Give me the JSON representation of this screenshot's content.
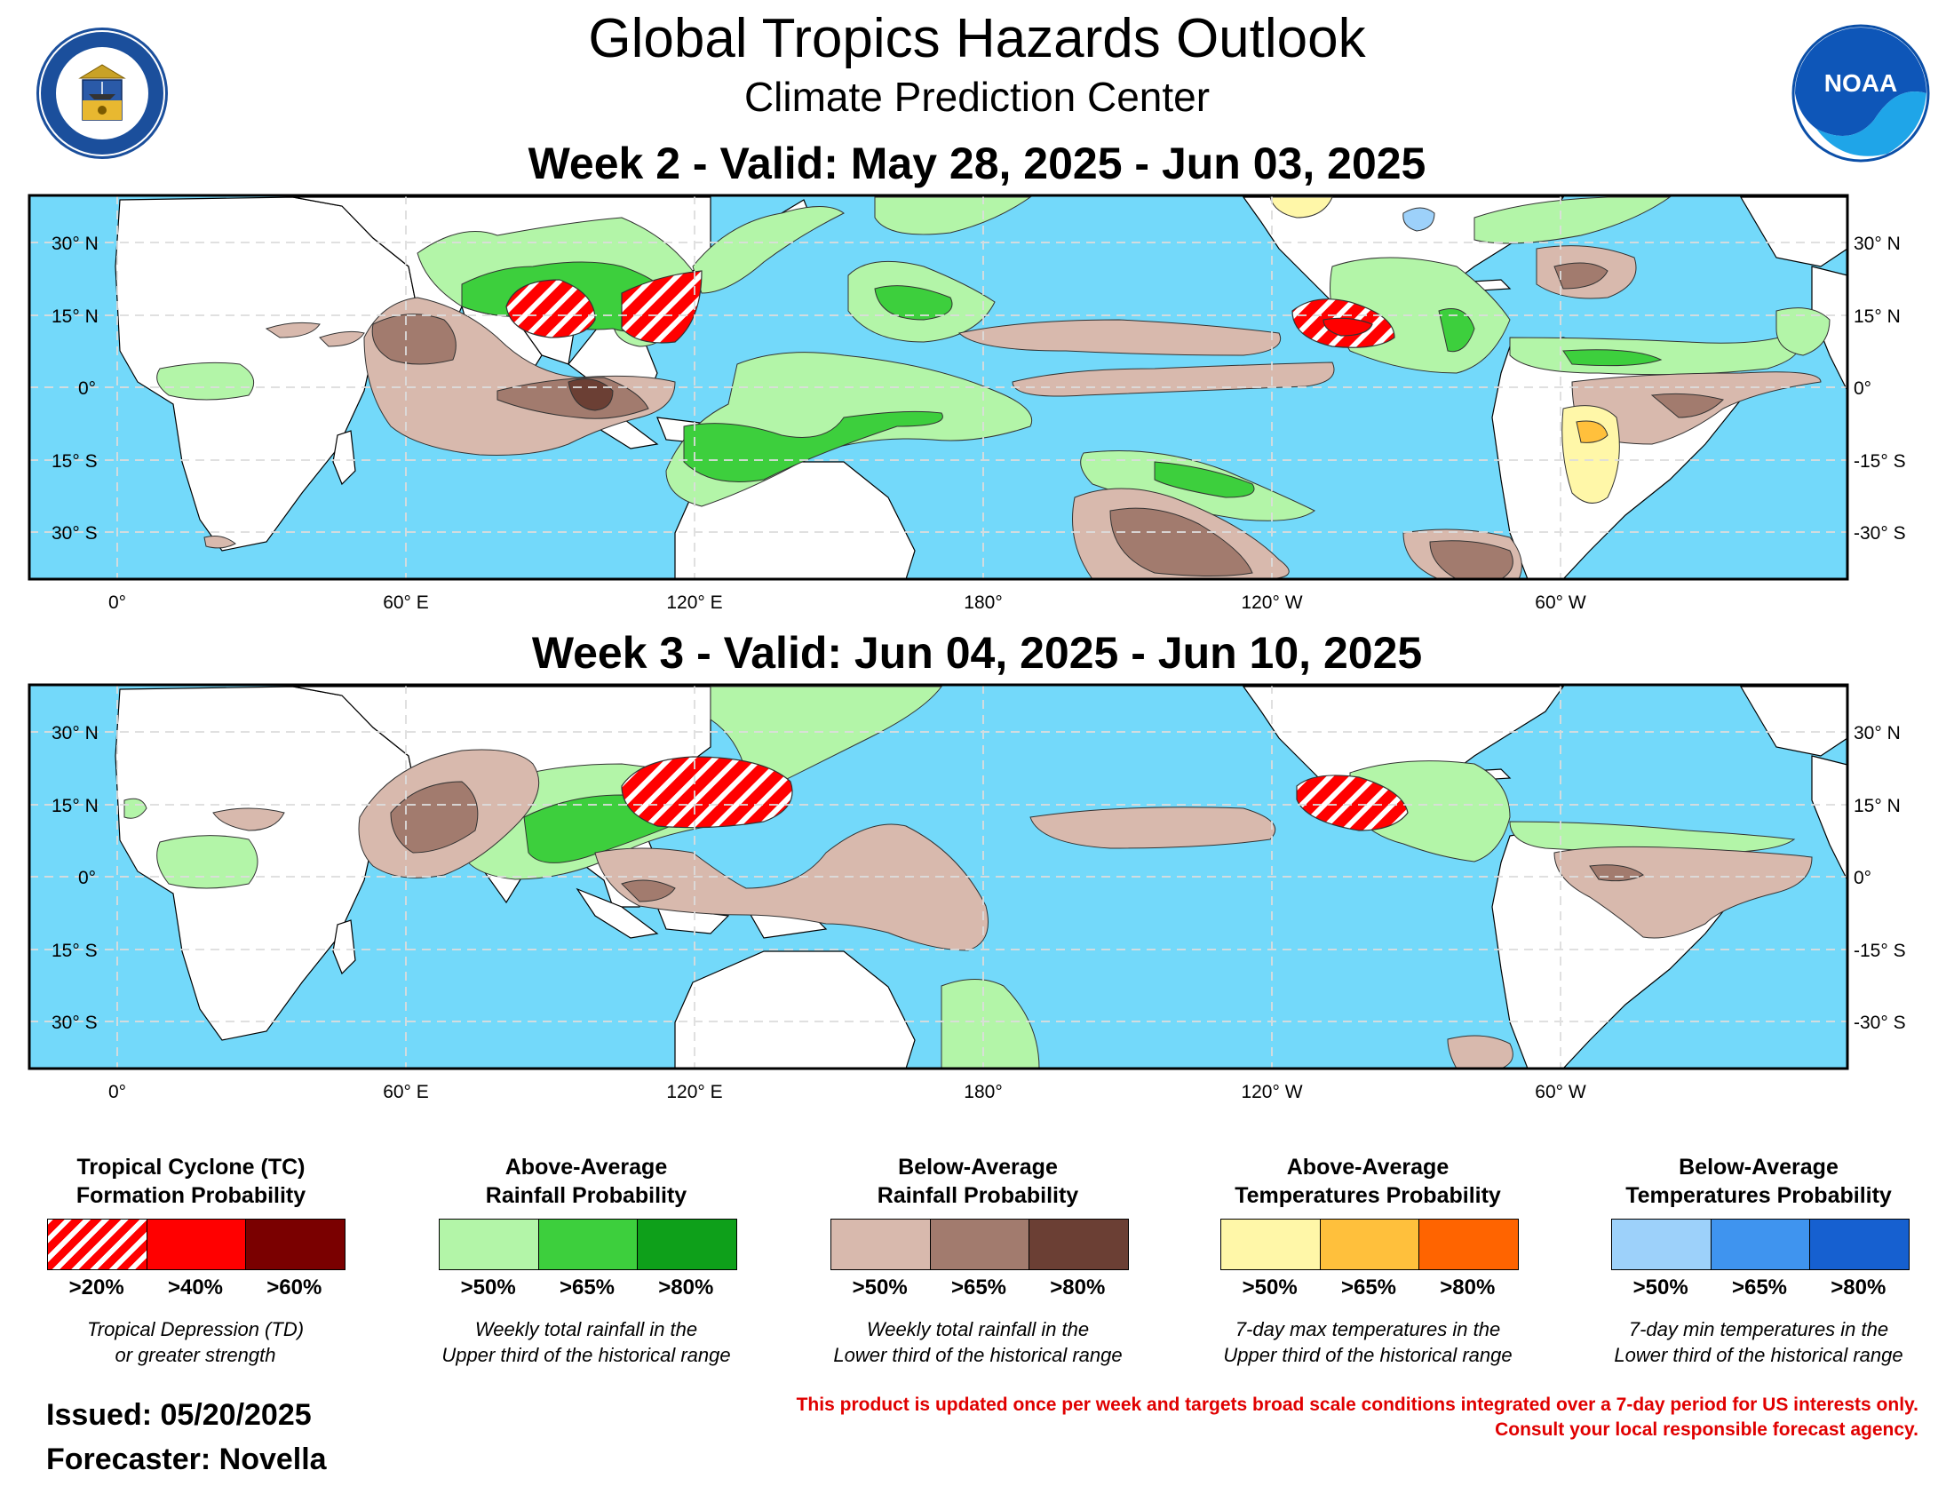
{
  "header": {
    "title": "Global Tropics Hazards Outlook",
    "subtitle": "Climate Prediction Center",
    "logo_left_name": "department-of-commerce-seal",
    "logo_right_name": "noaa-logo",
    "logo_right_text": "NOAA"
  },
  "maps": [
    {
      "title": "Week 2 - Valid: May 28, 2025 - Jun 03, 2025"
    },
    {
      "title": "Week 3 - Valid: Jun 04, 2025 - Jun 10, 2025"
    }
  ],
  "axes": {
    "lat_left": [
      "30° N",
      "15° N",
      "0°",
      "15° S",
      "30° S"
    ],
    "lat_right": [
      "30° N",
      "15° N",
      "0°",
      "-15° S",
      "-30° S"
    ],
    "lon": [
      "0°",
      "60° E",
      "120° E",
      "180°",
      "120° W",
      "60° W"
    ]
  },
  "legend": [
    {
      "title_lines": [
        "Tropical Cyclone (TC)",
        "Formation Probability"
      ],
      "colors": [
        "hatch",
        "#ff0000",
        "#7a0000"
      ],
      "labels": [
        ">20%",
        ">40%",
        ">60%"
      ],
      "desc_lines": [
        "Tropical Depression (TD)",
        "or greater strength"
      ]
    },
    {
      "title_lines": [
        "Above-Average",
        "Rainfall Probability"
      ],
      "colors": [
        "#b3f5a8",
        "#3dcf3d",
        "#0ea01a"
      ],
      "labels": [
        ">50%",
        ">65%",
        ">80%"
      ],
      "desc_lines": [
        "Weekly total rainfall in the",
        "Upper third of the historical range"
      ]
    },
    {
      "title_lines": [
        "Below-Average",
        "Rainfall Probability"
      ],
      "colors": [
        "#d8b9ad",
        "#a27b6e",
        "#6b3f34"
      ],
      "labels": [
        ">50%",
        ">65%",
        ">80%"
      ],
      "desc_lines": [
        "Weekly total rainfall in the",
        "Lower third of the historical range"
      ]
    },
    {
      "title_lines": [
        "Above-Average",
        "Temperatures Probability"
      ],
      "colors": [
        "#fff7a8",
        "#ffc03c",
        "#ff6400"
      ],
      "labels": [
        ">50%",
        ">65%",
        ">80%"
      ],
      "desc_lines": [
        "7-day max temperatures in the",
        "Upper third of the historical range"
      ]
    },
    {
      "title_lines": [
        "Below-Average",
        "Temperatures Probability"
      ],
      "colors": [
        "#9dd1fa",
        "#3f94ef",
        "#1660d0"
      ],
      "labels": [
        ">50%",
        ">65%",
        ">80%"
      ],
      "desc_lines": [
        "7-day min temperatures in the",
        "Lower third of the historical range"
      ]
    }
  ],
  "footer": {
    "issued": "Issued: 05/20/2025",
    "forecaster": "Forecaster: Novella",
    "disclaimer_1": "This product is updated once per week and targets broad scale conditions integrated over a 7-day period for US interests only.",
    "disclaimer_2": "Consult your local responsible forecast agency."
  },
  "colors": {
    "ocean": "#73d9fa",
    "land": "#ffffff",
    "tc_red": "#ff0000"
  }
}
